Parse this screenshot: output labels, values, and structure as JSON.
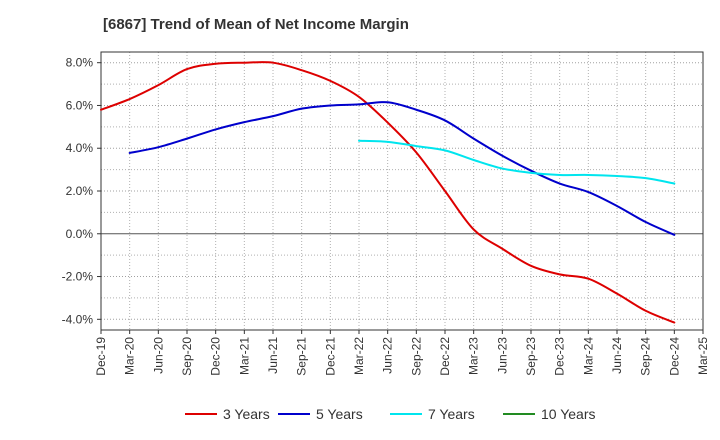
{
  "chart_data": {
    "type": "line",
    "title": "[6867]  Trend of Mean of Net Income Margin",
    "xlabel": "",
    "ylabel": "",
    "x": [
      "Dec-19",
      "Mar-20",
      "Jun-20",
      "Sep-20",
      "Dec-20",
      "Mar-21",
      "Jun-21",
      "Sep-21",
      "Dec-21",
      "Mar-22",
      "Jun-22",
      "Sep-22",
      "Dec-22",
      "Mar-23",
      "Jun-23",
      "Sep-23",
      "Dec-23",
      "Mar-24",
      "Jun-24",
      "Sep-24",
      "Dec-24",
      "Mar-25"
    ],
    "ylim": [
      -4.5,
      8.5
    ],
    "yticks": [
      8.0,
      6.0,
      4.0,
      2.0,
      0.0,
      -2.0,
      -4.0
    ],
    "ytick_labels": [
      "8.0%",
      "6.0%",
      "4.0%",
      "2.0%",
      "0.0%",
      "-2.0%",
      "-4.0%"
    ],
    "grid": true,
    "legend_position": "bottom",
    "series": [
      {
        "name": "3 Years",
        "color": "#dd0000",
        "values": [
          5.8,
          6.3,
          6.95,
          7.7,
          7.95,
          8.0,
          8.0,
          7.65,
          7.15,
          6.4,
          5.2,
          3.8,
          2.0,
          0.2,
          -0.7,
          -1.5,
          -1.9,
          -2.1,
          -2.8,
          -3.6,
          -4.15,
          null
        ]
      },
      {
        "name": "5 Years",
        "color": "#0000cc",
        "values": [
          null,
          3.78,
          4.05,
          4.45,
          4.88,
          5.22,
          5.5,
          5.85,
          6.0,
          6.05,
          6.15,
          5.8,
          5.3,
          4.45,
          3.65,
          2.95,
          2.35,
          1.95,
          1.3,
          0.55,
          -0.05,
          null
        ]
      },
      {
        "name": "7 Years",
        "color": "#00e5ee",
        "values": [
          null,
          null,
          null,
          null,
          null,
          null,
          null,
          null,
          null,
          4.35,
          4.3,
          4.1,
          3.9,
          3.45,
          3.05,
          2.85,
          2.75,
          2.75,
          2.7,
          2.6,
          2.35,
          null
        ]
      },
      {
        "name": "10 Years",
        "color": "#228b22",
        "values": [
          null,
          null,
          null,
          null,
          null,
          null,
          null,
          null,
          null,
          null,
          null,
          null,
          null,
          null,
          null,
          null,
          null,
          null,
          null,
          null,
          null,
          null
        ]
      }
    ]
  }
}
